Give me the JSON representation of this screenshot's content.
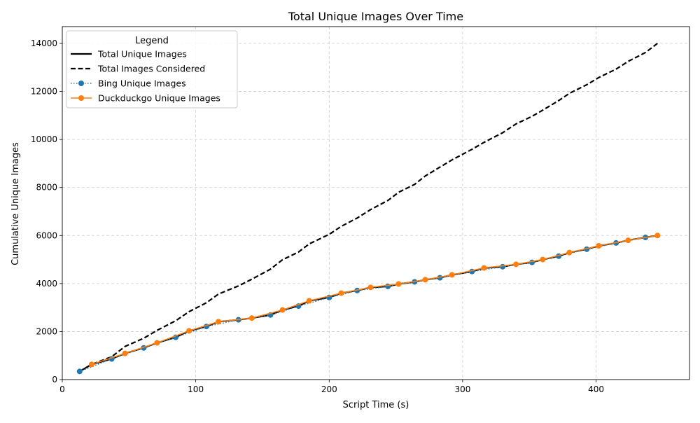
{
  "chart_data": {
    "type": "line",
    "title": "Total Unique Images Over Time",
    "xlabel": "Script Time (s)",
    "ylabel": "Cumulative Unique Images",
    "xlim": [
      0,
      470
    ],
    "ylim": [
      0,
      14700
    ],
    "xticks": [
      0,
      100,
      200,
      300,
      400
    ],
    "yticks": [
      0,
      2000,
      4000,
      6000,
      8000,
      10000,
      12000,
      14000
    ],
    "grid": true,
    "legend": {
      "title": "Legend",
      "placement": "top-left",
      "entries": [
        "Total Unique Images",
        "Total Images Considered",
        "Bing Unique Images",
        "Duckduckgo Unique Images"
      ]
    },
    "series": [
      {
        "name": "Total Unique Images",
        "color": "#000000",
        "style": "solid",
        "marker": "none",
        "x": [
          13,
          22,
          37,
          47,
          61,
          71,
          85,
          95,
          108,
          117,
          132,
          142,
          156,
          165,
          177,
          185,
          200,
          209,
          221,
          231,
          244,
          252,
          264,
          272,
          283,
          292,
          307,
          316,
          330,
          340,
          352,
          360,
          372,
          380,
          393,
          402,
          415,
          424,
          437,
          446
        ],
        "y": [
          340,
          630,
          860,
          1090,
          1320,
          1530,
          1760,
          2030,
          2210,
          2410,
          2490,
          2560,
          2690,
          2900,
          3060,
          3280,
          3420,
          3600,
          3710,
          3840,
          3880,
          3980,
          4070,
          4160,
          4240,
          4360,
          4500,
          4650,
          4700,
          4800,
          4880,
          5000,
          5140,
          5290,
          5430,
          5570,
          5690,
          5800,
          5920,
          6000
        ]
      },
      {
        "name": "Total Images Considered",
        "color": "#000000",
        "style": "dashed",
        "marker": "none",
        "x": [
          13,
          22,
          37,
          47,
          61,
          71,
          85,
          95,
          108,
          117,
          132,
          142,
          156,
          165,
          177,
          185,
          200,
          209,
          221,
          231,
          244,
          252,
          264,
          272,
          283,
          292,
          307,
          316,
          330,
          340,
          352,
          360,
          372,
          380,
          393,
          402,
          415,
          424,
          437,
          446
        ],
        "y": [
          340,
          630,
          950,
          1380,
          1720,
          2050,
          2450,
          2830,
          3200,
          3560,
          3900,
          4180,
          4600,
          4990,
          5310,
          5650,
          6050,
          6380,
          6730,
          7080,
          7460,
          7800,
          8130,
          8480,
          8850,
          9150,
          9590,
          9880,
          10280,
          10650,
          10960,
          11220,
          11620,
          11920,
          12280,
          12580,
          12930,
          13250,
          13620,
          14000
        ]
      },
      {
        "name": "Bing Unique Images",
        "color": "#1f77b4",
        "style": "dotted",
        "marker": "circle",
        "x": [
          13,
          37,
          61,
          85,
          108,
          132,
          156,
          177,
          200,
          221,
          244,
          264,
          283,
          307,
          330,
          352,
          372,
          393,
          415,
          437
        ],
        "y": [
          340,
          860,
          1320,
          1760,
          2210,
          2490,
          2690,
          3060,
          3420,
          3710,
          3880,
          4070,
          4240,
          4500,
          4700,
          4880,
          5140,
          5430,
          5690,
          5920
        ]
      },
      {
        "name": "Duckduckgo Unique Images",
        "color": "#ff7f0e",
        "style": "solid",
        "marker": "circle",
        "x": [
          22,
          47,
          71,
          95,
          117,
          142,
          165,
          185,
          209,
          231,
          252,
          272,
          292,
          316,
          340,
          360,
          380,
          402,
          424,
          446
        ],
        "y": [
          630,
          1090,
          1530,
          2030,
          2410,
          2560,
          2900,
          3280,
          3600,
          3840,
          3980,
          4160,
          4360,
          4650,
          4800,
          5000,
          5290,
          5570,
          5800,
          6000
        ]
      }
    ]
  }
}
